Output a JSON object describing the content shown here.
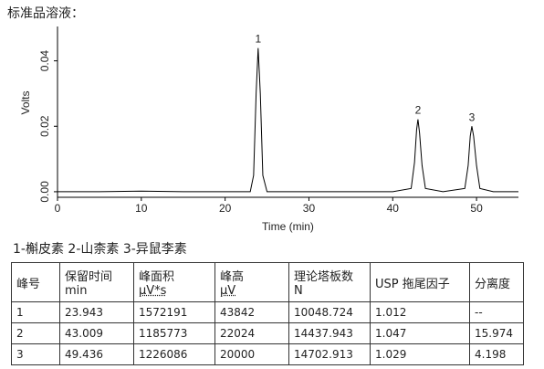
{
  "title": "标准品溶液：",
  "chart_data": {
    "type": "line",
    "xlabel": "Time (min)",
    "ylabel": "Volts",
    "color": "#000000",
    "x": [
      0,
      5,
      10,
      15,
      20,
      23.0,
      23.4,
      23.7,
      23.94,
      24.2,
      24.5,
      25,
      30,
      35,
      40,
      42.2,
      42.6,
      42.85,
      43.01,
      43.2,
      43.5,
      43.9,
      46,
      48.6,
      49.0,
      49.25,
      49.44,
      49.65,
      50.0,
      50.4,
      52,
      55
    ],
    "values": [
      0,
      0,
      0.0002,
      0,
      0,
      0,
      0.005,
      0.03,
      0.0439,
      0.03,
      0.005,
      0,
      0,
      0,
      0,
      0.001,
      0.009,
      0.019,
      0.0221,
      0.018,
      0.008,
      0.001,
      0,
      0.001,
      0.008,
      0.017,
      0.02,
      0.017,
      0.008,
      0.001,
      0,
      0
    ],
    "xlim": [
      0,
      55
    ],
    "xticks": [
      0,
      10,
      20,
      30,
      40,
      50
    ],
    "ylim": [
      -0.0017,
      0.0505
    ],
    "yticks": [
      {
        "value": 0,
        "label": "0.00"
      },
      {
        "value": 0.02,
        "label": "0.02"
      },
      {
        "value": 0.04,
        "label": "0.04"
      }
    ],
    "annotations": [
      {
        "text": "1",
        "x": 23.94,
        "y": 0.0439
      },
      {
        "text": "2",
        "x": 43.01,
        "y": 0.0221
      },
      {
        "text": "3",
        "x": 49.44,
        "y": 0.02
      }
    ]
  },
  "legend_text": "1-槲皮素 2-山柰素 3-异鼠李素",
  "table": {
    "header": [
      [
        "峰号"
      ],
      [
        "保留时间",
        "min"
      ],
      [
        "峰面积",
        "μV*s"
      ],
      [
        "峰高",
        "μV"
      ],
      [
        "理论塔板数",
        "N"
      ],
      [
        "USP 拖尾因子"
      ],
      [
        "分离度"
      ]
    ],
    "rows": [
      [
        1,
        23.943,
        1572191,
        43842,
        10048.724,
        1.012,
        "--"
      ],
      [
        2,
        43.009,
        1185773,
        22024,
        14437.943,
        1.047,
        15.974
      ],
      [
        3,
        49.436,
        1226086,
        20000,
        14702.913,
        1.029,
        4.198
      ]
    ]
  }
}
